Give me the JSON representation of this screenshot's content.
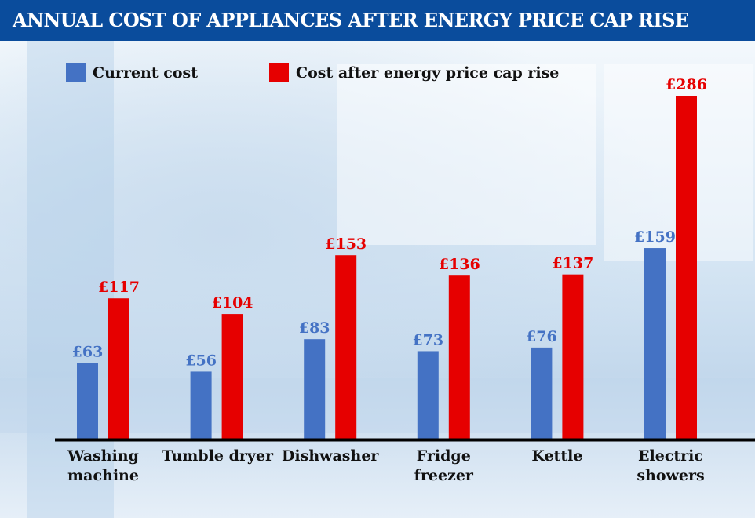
{
  "chart_data": {
    "type": "bar",
    "title": "ANNUAL COST OF APPLIANCES AFTER ENERGY PRICE CAP RISE",
    "categories": [
      [
        "Washing",
        "machine"
      ],
      [
        "Tumble dryer"
      ],
      [
        "Dishwasher"
      ],
      [
        "Fridge",
        "freezer"
      ],
      [
        "Kettle"
      ],
      [
        "Electric",
        "showers"
      ]
    ],
    "series": [
      {
        "name": "Current cost",
        "color": "#4472c4",
        "values": [
          63,
          56,
          83,
          73,
          76,
          159
        ],
        "labels": [
          "£63",
          "£56",
          "£83",
          "£73",
          "£76",
          "£159"
        ]
      },
      {
        "name": "Cost after energy price cap rise",
        "color": "#e60000",
        "values": [
          117,
          104,
          153,
          136,
          137,
          286
        ],
        "labels": [
          "£117",
          "£104",
          "£153",
          "£136",
          "£137",
          "£286"
        ]
      }
    ],
    "ylim": [
      0,
      286
    ],
    "grid": false,
    "legend": "top",
    "unit": "£"
  }
}
